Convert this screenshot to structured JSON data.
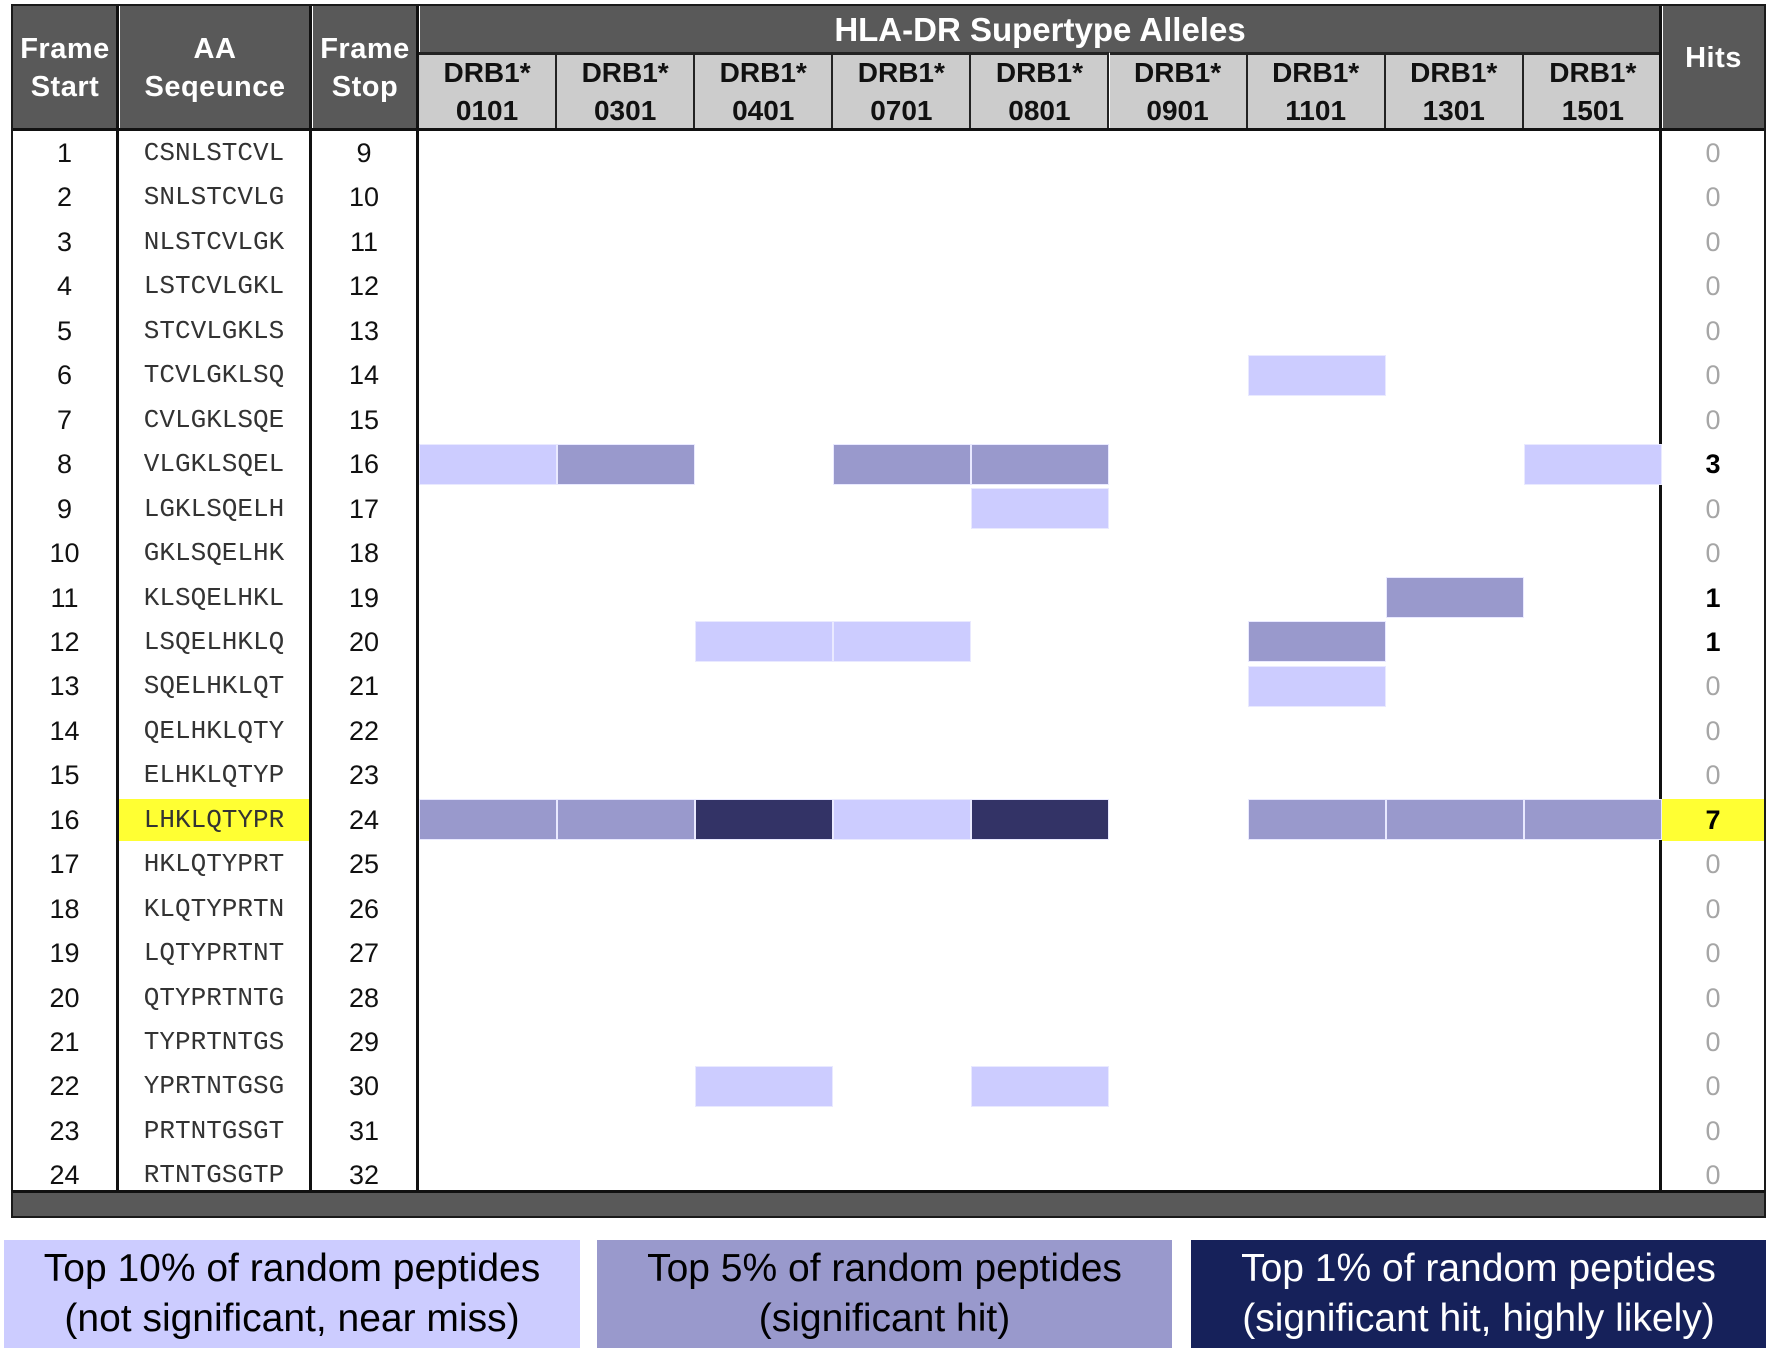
{
  "header": {
    "frame_start": [
      "Frame",
      "Start"
    ],
    "aa_sequence": [
      "AA",
      "Seqeunce"
    ],
    "frame_stop": [
      "Frame",
      "Stop"
    ],
    "group_title": "HLA-DR Supertype Alleles",
    "hits": "Hits",
    "alleles": [
      {
        "line1": "DRB1*",
        "line2": "0101"
      },
      {
        "line1": "DRB1*",
        "line2": "0301"
      },
      {
        "line1": "DRB1*",
        "line2": "0401"
      },
      {
        "line1": "DRB1*",
        "line2": "0701"
      },
      {
        "line1": "DRB1*",
        "line2": "0801"
      },
      {
        "line1": "DRB1*",
        "line2": "0901"
      },
      {
        "line1": "DRB1*",
        "line2": "1101"
      },
      {
        "line1": "DRB1*",
        "line2": "1301"
      },
      {
        "line1": "DRB1*",
        "line2": "1501"
      }
    ]
  },
  "colors": {
    "top10": "#CCCCFF",
    "top5": "#9999CC",
    "top1": "#333366",
    "highlight": "#FFFF33",
    "header_dark": "#595959",
    "header_light": "#CCCCCC",
    "legend_top1": "#16215A"
  },
  "chart_data": {
    "type": "heatmap",
    "title": "HLA-DR Supertype Alleles",
    "xlabel": "HLA-DR Supertype Alleles",
    "ylabel": "Frame Start / AA Seqeunce / Frame Stop",
    "columns": [
      "DRB1*0101",
      "DRB1*0301",
      "DRB1*0401",
      "DRB1*0701",
      "DRB1*0801",
      "DRB1*0901",
      "DRB1*1101",
      "DRB1*1301",
      "DRB1*1501"
    ],
    "levels": {
      "0": "none",
      "1": "Top 10% (not significant, near miss)",
      "2": "Top 5% (significant hit)",
      "3": "Top 1% (significant hit, highly likely)"
    },
    "rows": [
      {
        "start": "1",
        "seq": "CSNLSTCVL",
        "stop": "9",
        "cells": [
          0,
          0,
          0,
          0,
          0,
          0,
          0,
          0,
          0
        ],
        "hits": "0"
      },
      {
        "start": "2",
        "seq": "SNLSTCVLG",
        "stop": "10",
        "cells": [
          0,
          0,
          0,
          0,
          0,
          0,
          0,
          0,
          0
        ],
        "hits": "0"
      },
      {
        "start": "3",
        "seq": "NLSTCVLGK",
        "stop": "11",
        "cells": [
          0,
          0,
          0,
          0,
          0,
          0,
          0,
          0,
          0
        ],
        "hits": "0"
      },
      {
        "start": "4",
        "seq": "LSTCVLGKL",
        "stop": "12",
        "cells": [
          0,
          0,
          0,
          0,
          0,
          0,
          0,
          0,
          0
        ],
        "hits": "0"
      },
      {
        "start": "5",
        "seq": "STCVLGKLS",
        "stop": "13",
        "cells": [
          0,
          0,
          0,
          0,
          0,
          0,
          0,
          0,
          0
        ],
        "hits": "0"
      },
      {
        "start": "6",
        "seq": "TCVLGKLSQ",
        "stop": "14",
        "cells": [
          0,
          0,
          0,
          0,
          0,
          0,
          1,
          0,
          0
        ],
        "hits": "0"
      },
      {
        "start": "7",
        "seq": "CVLGKLSQE",
        "stop": "15",
        "cells": [
          0,
          0,
          0,
          0,
          0,
          0,
          0,
          0,
          0
        ],
        "hits": "0"
      },
      {
        "start": "8",
        "seq": "VLGKLSQEL",
        "stop": "16",
        "cells": [
          1,
          2,
          0,
          2,
          2,
          0,
          0,
          0,
          1
        ],
        "hits": "3"
      },
      {
        "start": "9",
        "seq": "LGKLSQELH",
        "stop": "17",
        "cells": [
          0,
          0,
          0,
          0,
          1,
          0,
          0,
          0,
          0
        ],
        "hits": "0"
      },
      {
        "start": "10",
        "seq": "GKLSQELHK",
        "stop": "18",
        "cells": [
          0,
          0,
          0,
          0,
          0,
          0,
          0,
          0,
          0
        ],
        "hits": "0"
      },
      {
        "start": "11",
        "seq": "KLSQELHKL",
        "stop": "19",
        "cells": [
          0,
          0,
          0,
          0,
          0,
          0,
          0,
          2,
          0
        ],
        "hits": "1"
      },
      {
        "start": "12",
        "seq": "LSQELHKLQ",
        "stop": "20",
        "cells": [
          0,
          0,
          1,
          1,
          0,
          0,
          2,
          0,
          0
        ],
        "hits": "1"
      },
      {
        "start": "13",
        "seq": "SQELHKLQT",
        "stop": "21",
        "cells": [
          0,
          0,
          0,
          0,
          0,
          0,
          1,
          0,
          0
        ],
        "hits": "0"
      },
      {
        "start": "14",
        "seq": "QELHKLQTY",
        "stop": "22",
        "cells": [
          0,
          0,
          0,
          0,
          0,
          0,
          0,
          0,
          0
        ],
        "hits": "0"
      },
      {
        "start": "15",
        "seq": "ELHKLQTYP",
        "stop": "23",
        "cells": [
          0,
          0,
          0,
          0,
          0,
          0,
          0,
          0,
          0
        ],
        "hits": "0"
      },
      {
        "start": "16",
        "seq": "LHKLQTYPR",
        "stop": "24",
        "cells": [
          2,
          2,
          3,
          1,
          3,
          0,
          2,
          2,
          2
        ],
        "hits": "7",
        "highlight": true
      },
      {
        "start": "17",
        "seq": "HKLQTYPRT",
        "stop": "25",
        "cells": [
          0,
          0,
          0,
          0,
          0,
          0,
          0,
          0,
          0
        ],
        "hits": "0"
      },
      {
        "start": "18",
        "seq": "KLQTYPRTN",
        "stop": "26",
        "cells": [
          0,
          0,
          0,
          0,
          0,
          0,
          0,
          0,
          0
        ],
        "hits": "0"
      },
      {
        "start": "19",
        "seq": "LQTYPRTNT",
        "stop": "27",
        "cells": [
          0,
          0,
          0,
          0,
          0,
          0,
          0,
          0,
          0
        ],
        "hits": "0"
      },
      {
        "start": "20",
        "seq": "QTYPRTNTG",
        "stop": "28",
        "cells": [
          0,
          0,
          0,
          0,
          0,
          0,
          0,
          0,
          0
        ],
        "hits": "0"
      },
      {
        "start": "21",
        "seq": "TYPRTNTGS",
        "stop": "29",
        "cells": [
          0,
          0,
          0,
          0,
          0,
          0,
          0,
          0,
          0
        ],
        "hits": "0"
      },
      {
        "start": "22",
        "seq": "YPRTNTGSG",
        "stop": "30",
        "cells": [
          0,
          0,
          1,
          0,
          1,
          0,
          0,
          0,
          0
        ],
        "hits": "0"
      },
      {
        "start": "23",
        "seq": "PRTNTGSGT",
        "stop": "31",
        "cells": [
          0,
          0,
          0,
          0,
          0,
          0,
          0,
          0,
          0
        ],
        "hits": "0"
      },
      {
        "start": "24",
        "seq": "RTNTGSGTP",
        "stop": "32",
        "cells": [
          0,
          0,
          0,
          0,
          0,
          0,
          0,
          0,
          0
        ],
        "hits": "0"
      }
    ]
  },
  "legend": [
    {
      "line1": "Top 10% of random peptides",
      "line2": "(not significant, near miss)",
      "bg": "#CCCCFF",
      "fg": "#000000"
    },
    {
      "line1": "Top 5% of random peptides",
      "line2": "(significant hit)",
      "bg": "#9999CC",
      "fg": "#000000"
    },
    {
      "line1": "Top 1% of random peptides",
      "line2": "(significant hit, highly likely)",
      "bg": "#16215A",
      "fg": "#FFFFFF"
    }
  ]
}
